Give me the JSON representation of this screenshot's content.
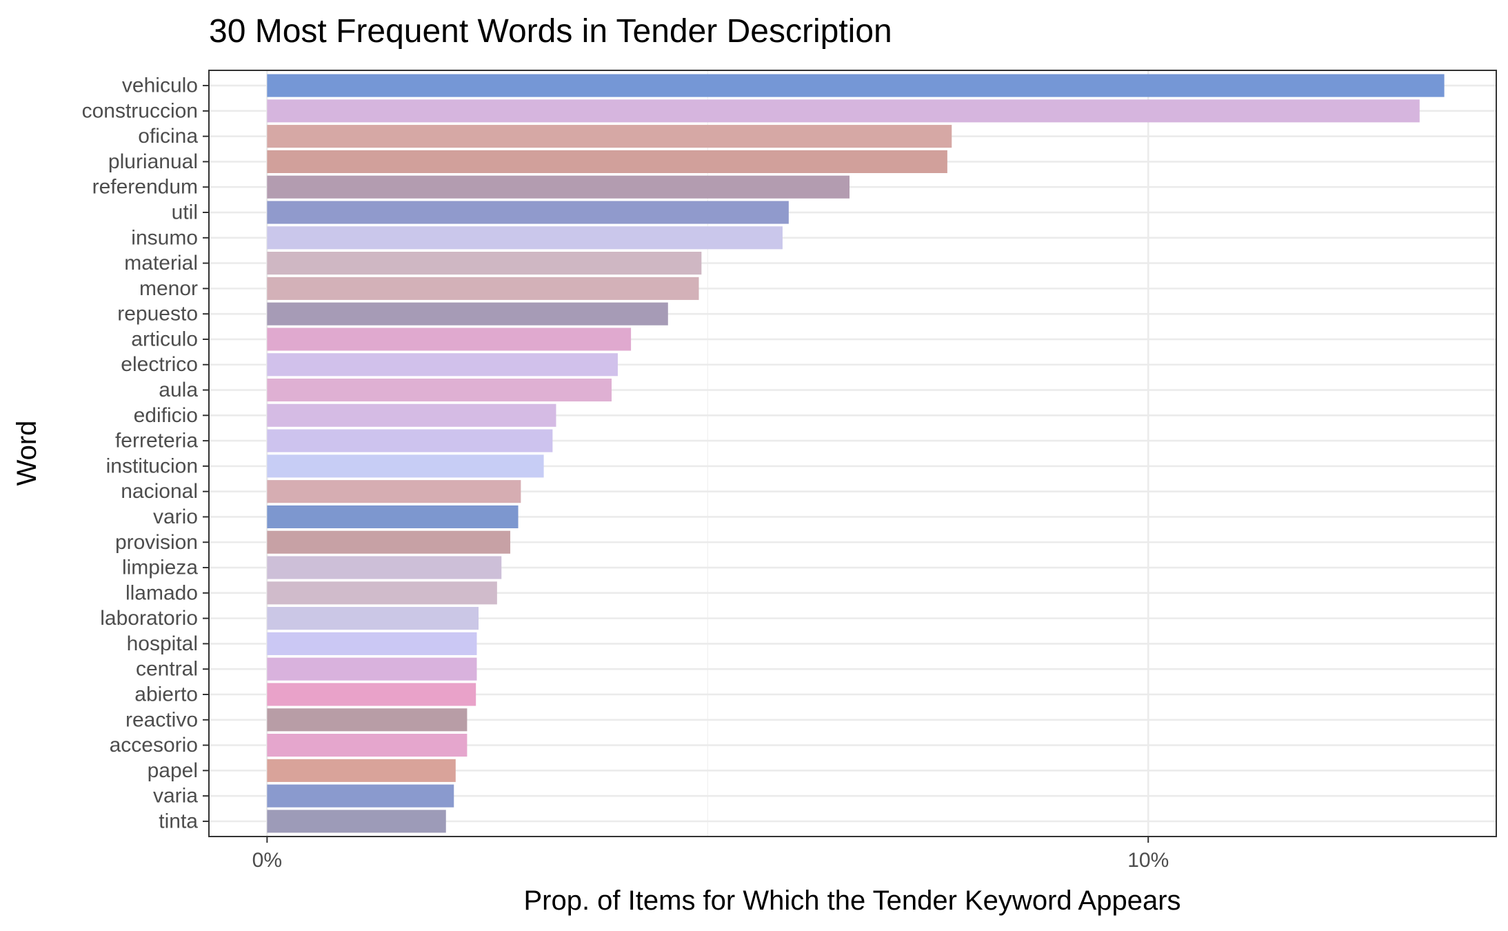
{
  "chart_data": {
    "type": "bar",
    "orientation": "horizontal",
    "title": "30 Most Frequent Words in Tender Description",
    "xlabel": "Prop. of Items for Which the Tender Keyword Appears",
    "ylabel": "Word",
    "xlim": [
      -0.0066,
      0.1395
    ],
    "x_ticks": [
      0,
      0.1
    ],
    "x_tick_labels": [
      "0%",
      "10%"
    ],
    "grid": true,
    "legend": "none",
    "categories": [
      "vehiculo",
      "construccion",
      "oficina",
      "plurianual",
      "referendum",
      "util",
      "insumo",
      "material",
      "menor",
      "repuesto",
      "articulo",
      "electrico",
      "aula",
      "edificio",
      "ferreteria",
      "institucion",
      "nacional",
      "vario",
      "provision",
      "limpieza",
      "llamado",
      "laboratorio",
      "hospital",
      "central",
      "abierto",
      "reactivo",
      "accesorio",
      "papel",
      "varia",
      "tinta"
    ],
    "values": [
      0.1336,
      0.1308,
      0.0777,
      0.0772,
      0.0661,
      0.0592,
      0.0585,
      0.0493,
      0.049,
      0.0455,
      0.0413,
      0.0398,
      0.0391,
      0.0328,
      0.0324,
      0.0314,
      0.0288,
      0.0285,
      0.0276,
      0.0266,
      0.0261,
      0.024,
      0.0238,
      0.0238,
      0.0237,
      0.0227,
      0.0227,
      0.0214,
      0.0212,
      0.0203
    ],
    "colors": [
      "#7597d6",
      "#d6b5de",
      "#d6a8a5",
      "#d1a09b",
      "#b39cb0",
      "#909acc",
      "#cac7eb",
      "#cfb7c3",
      "#d3b1b8",
      "#a69bb6",
      "#e0a9cf",
      "#d1c1eb",
      "#dfb0d3",
      "#d5bbe4",
      "#cdc3ee",
      "#c7cdf5",
      "#d6adb2",
      "#7d97cf",
      "#c7a1a5",
      "#cdbfd8",
      "#d0bbcb",
      "#cbc7e6",
      "#cbc8f4",
      "#d9b2dd",
      "#e9a2c9",
      "#b89da6",
      "#e5a6cd",
      "#d9a39a",
      "#8a9ace",
      "#9d9bb8"
    ]
  }
}
